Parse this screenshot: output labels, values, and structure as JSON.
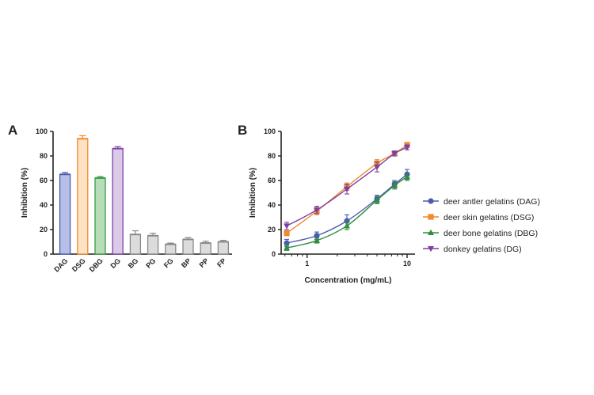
{
  "chart_data": [
    {
      "type": "bar",
      "panel_label": "A",
      "ylabel": "Inhibition (%)",
      "xlabel": "",
      "ylim": [
        0,
        100
      ],
      "yticks": [
        0,
        20,
        40,
        60,
        80,
        100
      ],
      "categories": [
        "DAG",
        "DSG",
        "DBG",
        "DG",
        "BG",
        "PG",
        "FG",
        "BP",
        "PP",
        "FP"
      ],
      "values": [
        65,
        94,
        62,
        86,
        16,
        15,
        8,
        12,
        9,
        10
      ],
      "errors": [
        1.5,
        2.5,
        1.2,
        1.5,
        3,
        2,
        1,
        1.5,
        1.5,
        1.2
      ],
      "fill_colors": [
        "#b8bfe6",
        "#fde2c4",
        "#b6ddb8",
        "#dccbe8",
        "#dcdcdc",
        "#dcdcdc",
        "#dcdcdc",
        "#dcdcdc",
        "#dcdcdc",
        "#dcdcdc"
      ],
      "edge_colors": [
        "#4a5bb0",
        "#f08a2c",
        "#3a9a48",
        "#7d3fa5",
        "#888888",
        "#888888",
        "#888888",
        "#888888",
        "#888888",
        "#888888"
      ],
      "grid": false
    },
    {
      "type": "line",
      "panel_label": "B",
      "xlabel": "Concentration (mg/mL)",
      "ylabel": "Inhibition (%)",
      "x_scale": "log",
      "xlim": [
        0.55,
        12
      ],
      "xticks": [
        1,
        10
      ],
      "xtick_labels": [
        "1",
        "10"
      ],
      "ylim": [
        0,
        100
      ],
      "yticks": [
        0,
        20,
        40,
        60,
        80,
        100
      ],
      "x": [
        0.625,
        1.25,
        2.5,
        5,
        7.5,
        10
      ],
      "legend_position": "right",
      "grid": false,
      "series": [
        {
          "name": "deer antler gelatins  (DAG)",
          "color": "#4a5bb0",
          "marker": "circle",
          "values": [
            9,
            15,
            27,
            45,
            57,
            65
          ],
          "errors": [
            3,
            3,
            5,
            3,
            3,
            4
          ]
        },
        {
          "name": "deer skin gelatins (DSG)",
          "color": "#f08a2c",
          "marker": "square",
          "values": [
            17,
            35,
            55,
            74,
            82,
            89
          ],
          "errors": [
            2,
            3,
            3,
            3,
            2,
            2
          ]
        },
        {
          "name": "deer bone gelatins (DBG)",
          "color": "#2f8f3c",
          "marker": "triangle-up",
          "values": [
            5,
            11,
            23,
            44,
            56,
            63
          ],
          "errors": [
            2,
            2,
            3,
            3,
            3,
            3
          ]
        },
        {
          "name": "donkey gelatins (DG)",
          "color": "#7d3fa5",
          "marker": "triangle-down",
          "values": [
            23,
            36,
            53,
            71,
            82,
            87
          ],
          "errors": [
            3,
            3,
            4,
            4,
            2,
            2
          ]
        }
      ]
    }
  ]
}
